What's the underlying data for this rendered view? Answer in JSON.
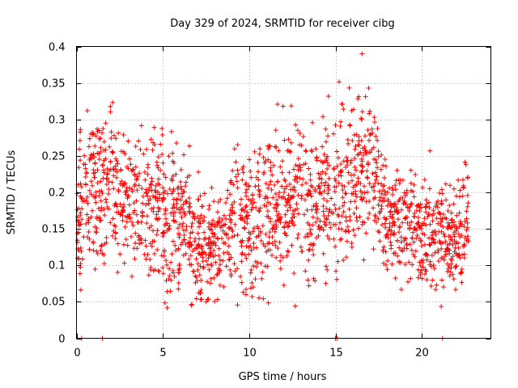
{
  "chart_data": {
    "type": "scatter",
    "title": "Day 329 of 2024, SRMTID for receiver cibg",
    "xlabel": "GPS time / hours",
    "ylabel": "SRMTID / TECUs",
    "xlim": [
      0,
      24
    ],
    "ylim": [
      0,
      0.4
    ],
    "xticks": [
      0,
      5,
      10,
      15,
      20
    ],
    "xtick_labels": [
      "0",
      "5",
      "10",
      "15",
      "20"
    ],
    "yticks": [
      0,
      0.05,
      0.1,
      0.15,
      0.2,
      0.25,
      0.3,
      0.35,
      0.4
    ],
    "ytick_labels": [
      "0",
      "0.05",
      "0.1",
      "0.15",
      "0.2",
      "0.25",
      "0.3",
      "0.35",
      "0.4"
    ],
    "grid": true,
    "marker": "+",
    "color": "#ff0000",
    "series": [
      {
        "name": "SRMTID",
        "description_of_trend": "Dense scatter of roughly 2000+ points from 0 to ~22.7 h; values mostly 0.05-0.30 TECU; elevated 0.2-0.4 near 15-17.5 h; dip to ~0.1 near 7-8 h and 21-22 h; a few zero values near 0.3, 1.5, 15, 21.2 h.",
        "envelope_x": [
          0,
          1,
          2,
          3,
          4,
          5,
          6,
          7,
          8,
          9,
          10,
          11,
          12,
          13,
          14,
          15,
          16,
          17,
          18,
          19,
          20,
          21,
          22,
          22.7
        ],
        "envelope_median": [
          0.17,
          0.2,
          0.22,
          0.2,
          0.17,
          0.18,
          0.16,
          0.13,
          0.12,
          0.17,
          0.15,
          0.17,
          0.19,
          0.2,
          0.18,
          0.21,
          0.23,
          0.24,
          0.17,
          0.16,
          0.15,
          0.14,
          0.12,
          0.17
        ],
        "envelope_spread": [
          0.06,
          0.07,
          0.07,
          0.06,
          0.06,
          0.07,
          0.06,
          0.05,
          0.05,
          0.06,
          0.06,
          0.07,
          0.07,
          0.07,
          0.07,
          0.09,
          0.08,
          0.07,
          0.05,
          0.05,
          0.05,
          0.05,
          0.05,
          0.05
        ],
        "zero_points_x": [
          0.3,
          1.5,
          15.0,
          15.1,
          21.2
        ]
      }
    ]
  }
}
